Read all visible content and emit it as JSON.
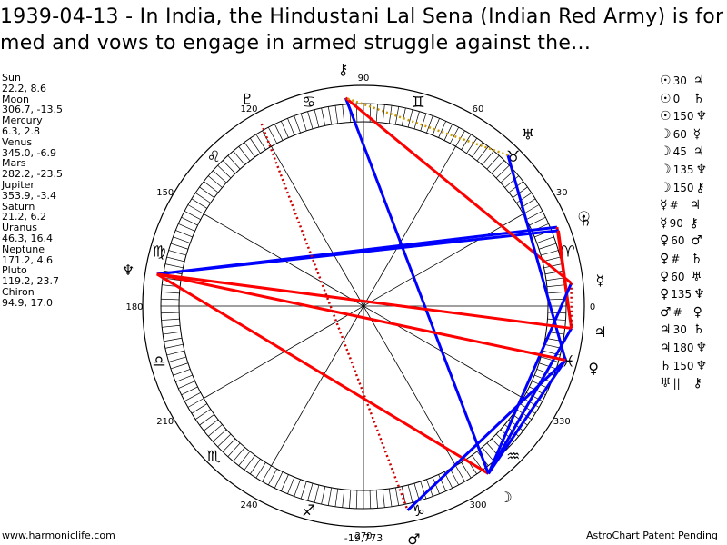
{
  "title": "1939-04-13 - In India, the Hindustani Lal Sena (Indian Red Army) is formed and vows to engage in armed struggle against the...",
  "planets": [
    {
      "name": "Sun",
      "coords": "22.2, 8.6"
    },
    {
      "name": "Moon",
      "coords": "306.7, -13.5"
    },
    {
      "name": "Mercury",
      "coords": "6.3, 2.8"
    },
    {
      "name": "Venus",
      "coords": "345.0, -6.9"
    },
    {
      "name": "Mars",
      "coords": "282.2, -23.5"
    },
    {
      "name": "Jupiter",
      "coords": "353.9, -3.4"
    },
    {
      "name": "Saturn",
      "coords": "21.2, 6.2"
    },
    {
      "name": "Uranus",
      "coords": "46.3, 16.4"
    },
    {
      "name": "Neptune",
      "coords": "171.2, 4.6"
    },
    {
      "name": "Pluto",
      "coords": "119.2, 23.7"
    },
    {
      "name": "Chiron",
      "coords": "94.9, 17.0"
    }
  ],
  "aspects": [
    {
      "a": "☉",
      "n": "30",
      "b": "♃"
    },
    {
      "a": "☉",
      "n": "0",
      "b": "♄"
    },
    {
      "a": "☉",
      "n": "150",
      "b": "♆"
    },
    {
      "a": "☽",
      "n": "60",
      "b": "☿"
    },
    {
      "a": "☽",
      "n": "45",
      "b": "♃"
    },
    {
      "a": "☽",
      "n": "135",
      "b": "♆"
    },
    {
      "a": "☽",
      "n": "150",
      "b": "⚷"
    },
    {
      "a": "☿",
      "n": "#",
      "b": "♃"
    },
    {
      "a": "☿",
      "n": "90",
      "b": "⚷"
    },
    {
      "a": "♀",
      "n": "60",
      "b": "♂"
    },
    {
      "a": "♀",
      "n": "#",
      "b": "♄"
    },
    {
      "a": "♀",
      "n": "60",
      "b": "♅"
    },
    {
      "a": "♀",
      "n": "135",
      "b": "♆"
    },
    {
      "a": "♂",
      "n": "#",
      "b": "♀"
    },
    {
      "a": "♃",
      "n": "30",
      "b": "♄"
    },
    {
      "a": "♃",
      "n": "180",
      "b": "♆"
    },
    {
      "a": "♄",
      "n": "150",
      "b": "♆"
    },
    {
      "a": "♅",
      "n": "||",
      "b": "⚷"
    }
  ],
  "wheel": {
    "degree_labels": [
      "0",
      "30",
      "60",
      "90",
      "120",
      "150",
      "180",
      "210",
      "240",
      "270",
      "300",
      "330"
    ],
    "bottom_value": "-19,773",
    "signs": [
      "♈",
      "♉",
      "♊",
      "♋",
      "♌",
      "♍",
      "♎",
      "♏",
      "♐",
      "♑",
      "♒",
      "♓"
    ],
    "planet_glyphs": [
      {
        "glyph": "☉",
        "lon": 22.2
      },
      {
        "glyph": "☽",
        "lon": 306.7
      },
      {
        "glyph": "☿",
        "lon": 6.3
      },
      {
        "glyph": "♀",
        "lon": 345.0
      },
      {
        "glyph": "♂",
        "lon": 282.2
      },
      {
        "glyph": "♃",
        "lon": 353.9
      },
      {
        "glyph": "♄",
        "lon": 21.2
      },
      {
        "glyph": "♅",
        "lon": 46.3
      },
      {
        "glyph": "♆",
        "lon": 171.2
      },
      {
        "glyph": "♇",
        "lon": 119.2
      },
      {
        "glyph": "⚷",
        "lon": 94.9
      }
    ],
    "aspect_lines": [
      {
        "from": 22.2,
        "to": 171.2,
        "color": "#0000ff",
        "style": "solid"
      },
      {
        "from": 22.2,
        "to": 353.9,
        "color": "#ff0000",
        "style": "solid"
      },
      {
        "from": 21.2,
        "to": 171.2,
        "color": "#0000ff",
        "style": "solid"
      },
      {
        "from": 21.2,
        "to": 353.9,
        "color": "#ff0000",
        "style": "solid"
      },
      {
        "from": 306.7,
        "to": 6.3,
        "color": "#0000ff",
        "style": "solid"
      },
      {
        "from": 306.7,
        "to": 353.9,
        "color": "#0000ff",
        "style": "solid"
      },
      {
        "from": 306.7,
        "to": 171.2,
        "color": "#ff0000",
        "style": "solid"
      },
      {
        "from": 306.7,
        "to": 94.9,
        "color": "#0000ff",
        "style": "solid"
      },
      {
        "from": 306.7,
        "to": 345.0,
        "color": "#0000ff",
        "style": "solid"
      },
      {
        "from": 6.3,
        "to": 94.9,
        "color": "#ff0000",
        "style": "solid"
      },
      {
        "from": 345.0,
        "to": 282.2,
        "color": "#0000ff",
        "style": "solid"
      },
      {
        "from": 345.0,
        "to": 46.3,
        "color": "#0000ff",
        "style": "solid"
      },
      {
        "from": 345.0,
        "to": 171.2,
        "color": "#ff0000",
        "style": "solid"
      },
      {
        "from": 353.9,
        "to": 171.2,
        "color": "#ff0000",
        "style": "solid"
      },
      {
        "from": 119.2,
        "to": 282.2,
        "color": "#cc0000",
        "style": "dotted"
      },
      {
        "from": 6.3,
        "to": 353.9,
        "color": "#cc0000",
        "style": "dotted"
      },
      {
        "from": 46.3,
        "to": 94.9,
        "color": "#cc9900",
        "style": "dotted"
      }
    ]
  },
  "footer": {
    "left": "www.harmoniclife.com",
    "right": "AstroChart Patent Pending"
  }
}
